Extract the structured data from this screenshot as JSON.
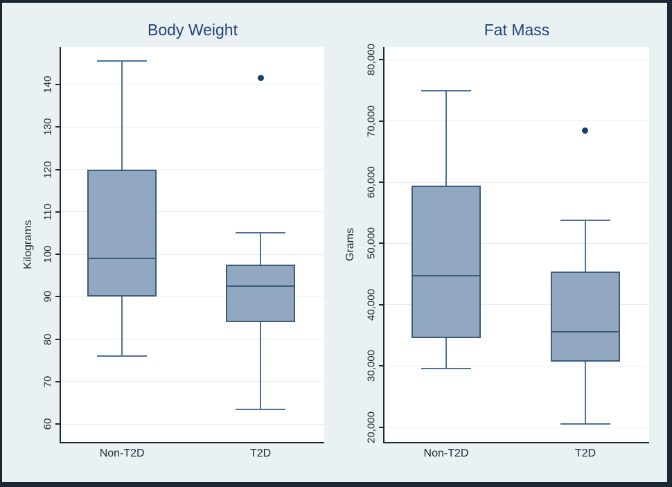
{
  "figure": {
    "kind": "stata-style side-by-side box plots",
    "group_labels": [
      "Non-T2D",
      "T2D"
    ]
  },
  "colors": {
    "background": "#eaf1f3",
    "frame": "#1d2731",
    "plot_background": "#ffffff",
    "gridline": "#e4edf4",
    "axis_line": "#1b2733",
    "box_fill": "#92a8c1",
    "box_border": "#3a5b7d",
    "whisker": "#4d7096",
    "median": "#3a5b7d",
    "outlier": "#1d3f66",
    "title": "#234578",
    "tick_label": "#1f2933"
  },
  "chart_data": [
    {
      "type": "box",
      "title": "Body Weight",
      "ylabel": "Kilograms",
      "categories": [
        "Non-T2D",
        "T2D"
      ],
      "yticks": [
        60,
        70,
        80,
        90,
        100,
        110,
        120,
        130,
        140
      ],
      "ytick_labels": [
        "60",
        "70",
        "80",
        "90",
        "100",
        "110",
        "120",
        "130",
        "140"
      ],
      "ylim": [
        55.8,
        148.8
      ],
      "grid": true,
      "legend": "none",
      "series": [
        {
          "category": "Non-T2D",
          "whisker_low": 76,
          "q1": 90,
          "median": 99,
          "q3": 120,
          "whisker_high": 145.5,
          "outliers": []
        },
        {
          "category": "T2D",
          "whisker_low": 63.5,
          "q1": 84,
          "median": 92.5,
          "q3": 97.5,
          "whisker_high": 105,
          "outliers": [
            141.5
          ]
        }
      ]
    },
    {
      "type": "box",
      "title": "Fat Mass",
      "ylabel": "Grams",
      "categories": [
        "Non-T2D",
        "T2D"
      ],
      "yticks": [
        20000,
        30000,
        40000,
        50000,
        60000,
        70000,
        80000
      ],
      "ytick_labels": [
        "20,000",
        "30,000",
        "40,000",
        "50,000",
        "60,000",
        "70,000",
        "80,000"
      ],
      "ylim": [
        17600,
        82050
      ],
      "grid": true,
      "legend": "none",
      "series": [
        {
          "category": "Non-T2D",
          "whisker_low": 29600,
          "q1": 34600,
          "median": 44700,
          "q3": 59400,
          "whisker_high": 74900,
          "outliers": []
        },
        {
          "category": "T2D",
          "whisker_low": 20500,
          "q1": 30700,
          "median": 35600,
          "q3": 45400,
          "whisker_high": 53800,
          "outliers": [
            68400
          ]
        }
      ]
    }
  ]
}
